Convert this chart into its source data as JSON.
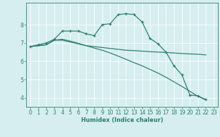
{
  "xlabel": "Humidex (Indice chaleur)",
  "background_color": "#d6eef0",
  "grid_color": "#c8e8ea",
  "line_color": "#2e7d6e",
  "xlim": [
    -0.5,
    23.5
  ],
  "ylim": [
    3.5,
    9.2
  ],
  "yticks": [
    4,
    5,
    6,
    7,
    8
  ],
  "xticks": [
    0,
    1,
    2,
    3,
    4,
    5,
    6,
    7,
    8,
    9,
    10,
    11,
    12,
    13,
    14,
    15,
    16,
    17,
    18,
    19,
    20,
    21,
    22,
    23
  ],
  "series": [
    {
      "x": [
        0,
        1,
        2,
        3,
        4,
        5,
        6,
        7,
        8,
        9,
        10,
        11,
        12,
        13,
        14,
        15,
        16,
        17,
        18,
        19,
        20,
        21,
        22
      ],
      "y": [
        6.8,
        6.9,
        7.0,
        7.2,
        7.65,
        7.65,
        7.65,
        7.5,
        7.4,
        8.0,
        8.05,
        8.55,
        8.6,
        8.55,
        8.15,
        7.25,
        6.95,
        6.5,
        5.75,
        5.25,
        4.15,
        4.1,
        3.9
      ],
      "has_markers": true
    },
    {
      "x": [
        0,
        1,
        2,
        3,
        4,
        5,
        6,
        7,
        8,
        9,
        10,
        11,
        12,
        13,
        14,
        15,
        16,
        17,
        18,
        19,
        20,
        21,
        22
      ],
      "y": [
        6.8,
        6.85,
        6.9,
        7.15,
        7.15,
        7.05,
        6.95,
        6.85,
        6.8,
        6.75,
        6.7,
        6.65,
        6.6,
        6.58,
        6.55,
        6.52,
        6.5,
        6.48,
        6.45,
        6.42,
        6.4,
        6.38,
        6.35
      ],
      "has_markers": false
    },
    {
      "x": [
        0,
        1,
        2,
        3,
        4,
        5,
        6,
        7,
        8,
        9,
        10,
        11,
        12,
        13,
        14,
        15,
        16,
        17,
        18,
        19,
        20,
        21,
        22
      ],
      "y": [
        6.8,
        6.85,
        6.9,
        7.15,
        7.2,
        7.1,
        6.98,
        6.85,
        6.72,
        6.6,
        6.45,
        6.28,
        6.1,
        5.92,
        5.75,
        5.55,
        5.35,
        5.12,
        4.87,
        4.62,
        4.35,
        4.08,
        3.88
      ],
      "has_markers": false
    }
  ]
}
